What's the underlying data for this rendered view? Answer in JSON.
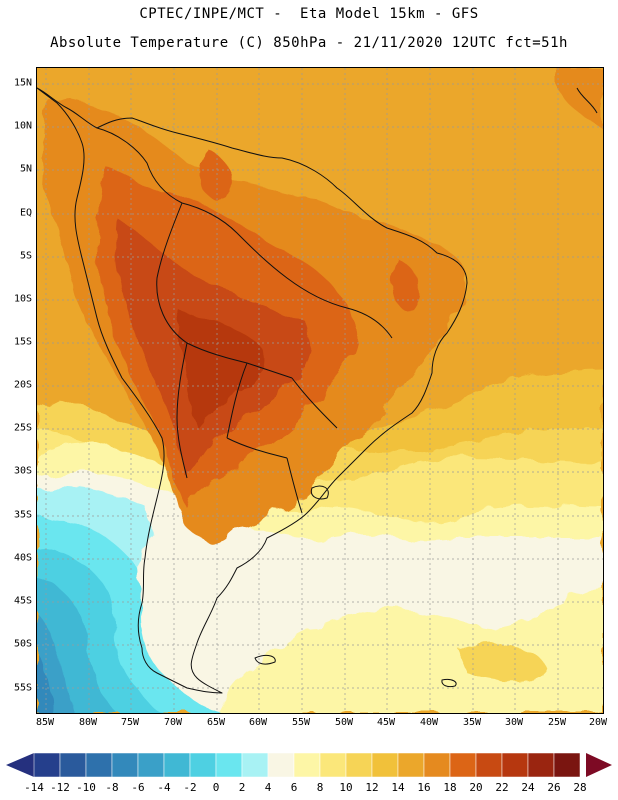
{
  "header": {
    "title_line1": "CPTEC/INPE/MCT -  Eta Model 15km - GFS",
    "title_line2": "Absolute Temperature (C) 850hPa - 21/11/2020 12UTC fct=51h"
  },
  "map": {
    "region": "South America",
    "latitude_labels": [
      "15N",
      "10N",
      "5N",
      "EQ",
      "5S",
      "10S",
      "15S",
      "20S",
      "25S",
      "30S",
      "35S",
      "40S",
      "45S",
      "50S",
      "55S"
    ],
    "longitude_labels": [
      "85W",
      "80W",
      "75W",
      "70W",
      "65W",
      "60W",
      "55W",
      "50W",
      "45W",
      "40W",
      "35W",
      "30W",
      "25W",
      "20W"
    ]
  },
  "colorbar": {
    "labels": [
      "-14",
      "-12",
      "-10",
      "-8",
      "-6",
      "-4",
      "-2",
      "0",
      "2",
      "4",
      "6",
      "8",
      "10",
      "12",
      "14",
      "16",
      "18",
      "20",
      "22",
      "24",
      "26",
      "28"
    ],
    "low_arrow_color": "#25307e",
    "high_arrow_color": "#7d0a24",
    "colors": [
      "#253f8c",
      "#2a5a9c",
      "#2e71ac",
      "#3389bb",
      "#3aa0c8",
      "#40b8d4",
      "#4ed0e2",
      "#6ae6ef",
      "#a8f2f4",
      "#f9f6e4",
      "#fdf6a6",
      "#fbe77a",
      "#f6d456",
      "#f1c13a",
      "#eba72b",
      "#e58a1f",
      "#dc6516",
      "#c84a12",
      "#b6370f",
      "#9a2510",
      "#7a1510"
    ]
  }
}
